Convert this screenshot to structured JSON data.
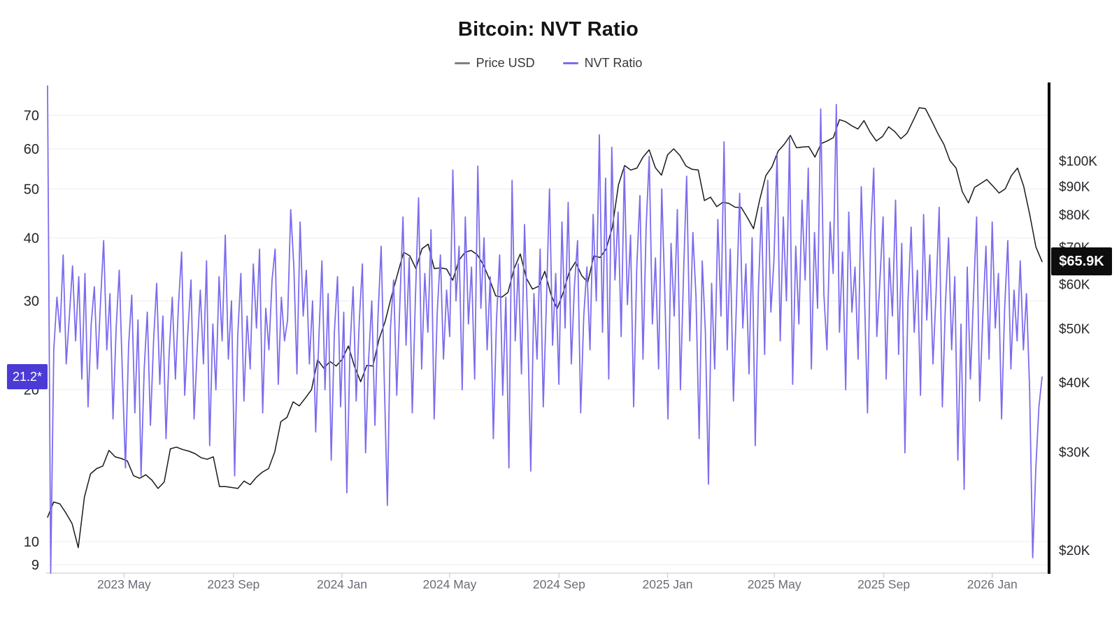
{
  "title": "Bitcoin: NVT Ratio",
  "colors": {
    "price_line": "#1a1a1a",
    "nvt_line": "#7b6cee",
    "nvt_badge_bg": "#4c3ad6",
    "price_badge_bg": "#0d0d0d",
    "legend_price_dash": "#808080",
    "grid_line": "#ededf2",
    "axis_line": "#cfcfd4",
    "right_spine": "#000000",
    "tick_label": "#26262b",
    "x_label": "#6b6b76"
  },
  "legend": [
    {
      "label": "Price USD",
      "color": "#808080"
    },
    {
      "label": "NVT Ratio",
      "color": "#7b6cee"
    }
  ],
  "chart_data": {
    "type": "line",
    "title": "Bitcoin: NVT Ratio",
    "x_start_date": "2023-02-04",
    "x_end_date": "2026-02-26",
    "x_span_days": 1118,
    "grid": "horizontal-only",
    "legend_position": "top-center",
    "x_ticks": [
      {
        "label": "2023 May",
        "day": 86
      },
      {
        "label": "2023 Sep",
        "day": 209
      },
      {
        "label": "2024 Jan",
        "day": 331
      },
      {
        "label": "2024 May",
        "day": 452
      },
      {
        "label": "2024 Sep",
        "day": 575
      },
      {
        "label": "2025 Jan",
        "day": 697
      },
      {
        "label": "2025 May",
        "day": 817
      },
      {
        "label": "2025 Sep",
        "day": 940
      },
      {
        "label": "2026 Jan",
        "day": 1062
      }
    ],
    "left_axis": {
      "name": "NVT Ratio",
      "scale": "log",
      "range_approx": [
        8.6,
        80
      ],
      "ticks": [
        70,
        60,
        50,
        40,
        30,
        20,
        10,
        9
      ],
      "current_value": 21.2,
      "current_value_label": "21.2*"
    },
    "right_axis": {
      "name": "Price USD",
      "scale": "log",
      "range_approx_usd_k": [
        18,
        137
      ],
      "tick_values_usd_k": [
        100,
        90,
        80,
        70,
        60,
        50,
        40,
        30,
        20
      ],
      "tick_labels": [
        "$100K",
        "$90K",
        "$80K",
        "$70K",
        "$60K",
        "$50K",
        "$40K",
        "$30K",
        "$20K"
      ],
      "current_value_usd_k": 65.9,
      "current_value_label": "$65.9K"
    },
    "series": [
      {
        "name": "Price USD",
        "axis": "right",
        "unit": "USD thousands",
        "color": "#1a1a1a",
        "sampling": "uniform, ~7 days per point over full range",
        "values": [
          22.9,
          24.4,
          24.2,
          23.3,
          22.3,
          20.2,
          24.9,
          27.4,
          28.0,
          28.3,
          30.2,
          29.4,
          29.2,
          28.9,
          27.2,
          26.9,
          27.3,
          26.7,
          25.8,
          26.5,
          30.4,
          30.6,
          30.3,
          30.1,
          29.8,
          29.3,
          29.1,
          29.4,
          26.0,
          26.0,
          25.9,
          25.8,
          26.6,
          26.2,
          27.0,
          27.6,
          28.0,
          30.0,
          34.0,
          34.6,
          36.9,
          36.3,
          37.5,
          38.8,
          43.9,
          42.4,
          43.6,
          42.8,
          44.0,
          46.5,
          42.7,
          40.1,
          42.9,
          42.8,
          47.8,
          51.5,
          57.0,
          62.5,
          68.5,
          67.5,
          64.0,
          69.5,
          70.8,
          64.0,
          64.2,
          63.9,
          61.0,
          66.2,
          68.5,
          69.0,
          67.8,
          65.0,
          61.2,
          57.2,
          56.9,
          58.0,
          64.0,
          68.0,
          61.5,
          58.8,
          59.5,
          63.3,
          57.5,
          54.2,
          58.0,
          63.2,
          65.8,
          62.2,
          60.5,
          67.5,
          67.0,
          69.5,
          76.0,
          90.5,
          98.0,
          96.2,
          97.0,
          101.5,
          104.6,
          97.2,
          94.2,
          102.5,
          105.0,
          102.2,
          97.8,
          96.5,
          96.2,
          84.8,
          86.0,
          82.7,
          84.2,
          83.8,
          82.5,
          82.4,
          79.0,
          75.5,
          85.0,
          94.0,
          97.5,
          104.0,
          107.0,
          111.0,
          105.5,
          105.8,
          106.0,
          101.5,
          107.3,
          108.5,
          110.0,
          118.5,
          117.5,
          115.5,
          114.0,
          118.0,
          112.5,
          108.5,
          110.5,
          115.0,
          112.8,
          109.5,
          112.0,
          118.0,
          124.5,
          124.0,
          118.0,
          112.0,
          107.0,
          100.0,
          97.0,
          88.0,
          84.0,
          89.5,
          91.0,
          92.5,
          90.0,
          87.5,
          89.0,
          94.0,
          97.0,
          90.0,
          80.0,
          70.0,
          65.9
        ]
      },
      {
        "name": "NVT Ratio",
        "axis": "left",
        "unit": "ratio",
        "color": "#7b6cee",
        "sampling": "uniform, ~3.5 days per point over full range",
        "values": [
          80.0,
          8.3,
          24.0,
          30.5,
          26.0,
          37.0,
          22.5,
          28.0,
          35.2,
          25.0,
          33.5,
          21.0,
          34.0,
          18.5,
          27.0,
          32.0,
          22.0,
          30.0,
          39.5,
          24.0,
          31.0,
          17.5,
          26.5,
          34.5,
          21.5,
          14.0,
          24.5,
          30.8,
          18.0,
          27.5,
          13.5,
          22.0,
          28.5,
          17.0,
          25.0,
          32.5,
          20.5,
          28.0,
          16.0,
          23.5,
          30.5,
          21.0,
          29.5,
          37.5,
          19.5,
          26.0,
          33.0,
          17.5,
          24.0,
          31.5,
          22.5,
          36.0,
          15.5,
          27.0,
          20.0,
          33.5,
          25.0,
          40.5,
          23.0,
          30.0,
          13.5,
          25.5,
          34.0,
          19.0,
          28.0,
          22.0,
          35.5,
          26.5,
          38.0,
          18.0,
          29.0,
          24.0,
          33.0,
          38.0,
          20.5,
          30.5,
          25.0,
          27.5,
          45.5,
          35.0,
          21.5,
          43.0,
          28.0,
          34.5,
          22.5,
          30.0,
          16.5,
          25.0,
          36.0,
          20.0,
          31.0,
          14.5,
          26.0,
          33.5,
          18.5,
          28.5,
          12.5,
          24.0,
          32.0,
          19.0,
          27.5,
          35.5,
          15.0,
          23.0,
          30.0,
          17.0,
          28.0,
          38.5,
          21.0,
          11.8,
          26.5,
          33.0,
          19.5,
          29.5,
          44.0,
          24.5,
          36.5,
          18.0,
          30.5,
          48.0,
          22.0,
          34.0,
          26.0,
          41.5,
          17.5,
          28.5,
          37.0,
          23.0,
          31.5,
          25.5,
          54.5,
          30.0,
          38.5,
          20.0,
          44.0,
          27.0,
          35.0,
          21.0,
          55.5,
          29.0,
          40.0,
          24.0,
          33.5,
          16.0,
          27.5,
          37.0,
          19.5,
          30.5,
          14.0,
          52.0,
          25.0,
          35.5,
          21.5,
          42.5,
          27.0,
          13.8,
          31.0,
          23.0,
          38.0,
          18.5,
          29.5,
          50.0,
          24.5,
          34.0,
          20.5,
          43.0,
          26.5,
          47.0,
          22.5,
          32.0,
          39.5,
          18.0,
          28.0,
          35.0,
          24.0,
          44.5,
          30.0,
          64.0,
          26.0,
          52.5,
          21.0,
          60.5,
          33.0,
          45.0,
          25.5,
          55.0,
          29.5,
          40.5,
          18.5,
          35.0,
          48.5,
          23.0,
          42.0,
          58.0,
          27.0,
          36.5,
          22.0,
          50.0,
          31.0,
          17.5,
          39.0,
          28.0,
          45.5,
          20.0,
          34.0,
          53.0,
          25.0,
          41.0,
          30.5,
          16.0,
          36.0,
          26.0,
          13.0,
          32.5,
          22.0,
          43.5,
          28.0,
          62.0,
          24.0,
          38.0,
          19.0,
          30.0,
          49.0,
          26.5,
          35.5,
          21.5,
          40.0,
          15.5,
          31.5,
          46.0,
          23.5,
          52.0,
          28.5,
          36.0,
          58.5,
          25.0,
          44.0,
          30.0,
          63.0,
          20.5,
          38.5,
          27.0,
          47.5,
          33.0,
          55.0,
          22.0,
          41.0,
          29.0,
          72.0,
          31.0,
          24.0,
          43.0,
          34.0,
          73.5,
          26.0,
          37.5,
          20.0,
          45.0,
          28.5,
          35.0,
          23.0,
          50.5,
          31.5,
          18.0,
          40.0,
          55.0,
          25.5,
          33.0,
          44.0,
          21.0,
          36.5,
          28.0,
          47.5,
          23.5,
          39.0,
          15.0,
          30.0,
          42.0,
          26.0,
          34.5,
          19.5,
          44.5,
          27.5,
          37.0,
          22.5,
          31.0,
          46.0,
          18.5,
          29.5,
          40.0,
          24.0,
          33.5,
          14.5,
          27.0,
          12.7,
          35.0,
          21.0,
          30.5,
          44.0,
          19.0,
          28.0,
          38.5,
          23.0,
          43.0,
          26.5,
          34.0,
          17.5,
          29.0,
          39.5,
          22.0,
          31.5,
          25.0,
          36.0,
          24.0,
          31.0,
          20.0,
          9.3,
          14.0,
          18.5,
          21.2
        ]
      }
    ]
  }
}
